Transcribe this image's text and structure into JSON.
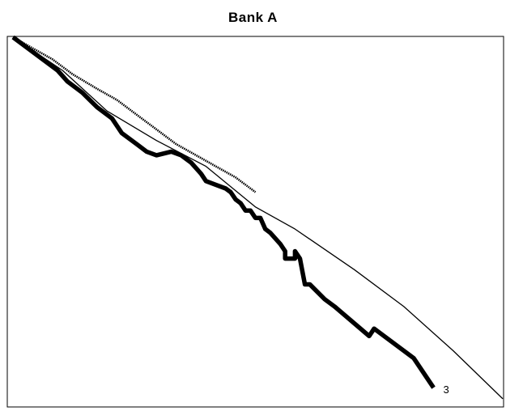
{
  "chart_data": {
    "type": "line",
    "title": "Bank A",
    "xlabel": "",
    "ylabel": "",
    "xlim": [
      0,
      100
    ],
    "ylim": [
      0,
      100
    ],
    "grid": false,
    "series": [
      {
        "style": "thin",
        "color": "#000000",
        "x": [
          1,
          11,
          20,
          30,
          40,
          50,
          58,
          70,
          80,
          90,
          100
        ],
        "y": [
          100,
          91,
          80,
          72,
          65,
          54,
          48,
          37,
          27,
          15,
          2
        ]
      },
      {
        "style": "dotted-medium",
        "color": "#000000",
        "x": [
          1,
          5,
          9,
          13,
          18,
          22,
          26,
          30,
          34,
          38,
          42,
          46,
          50
        ],
        "y": [
          100,
          97,
          94,
          90,
          86,
          83,
          79,
          75,
          71,
          68,
          65,
          62,
          58
        ]
      },
      {
        "style": "thick",
        "color": "#000000",
        "end_label": "3",
        "x": [
          1,
          4,
          7,
          10,
          12,
          15,
          18,
          21,
          23,
          26,
          28,
          30,
          33,
          35,
          36,
          37,
          39,
          40,
          42,
          44,
          45,
          46,
          47,
          48,
          49,
          50,
          51,
          52,
          53,
          55,
          56,
          56,
          58,
          58,
          59,
          60,
          61,
          64,
          66,
          73,
          74,
          80,
          82,
          86
        ],
        "y": [
          100,
          97,
          94,
          91,
          88,
          85,
          81,
          78,
          74,
          71,
          69,
          68,
          69,
          68,
          67,
          66,
          63,
          61,
          60,
          59,
          58,
          56,
          55,
          53,
          53,
          51,
          51,
          48,
          47,
          44,
          42,
          40,
          40,
          42,
          40,
          33,
          33,
          29,
          27,
          19,
          21,
          15,
          13,
          5
        ]
      }
    ]
  }
}
